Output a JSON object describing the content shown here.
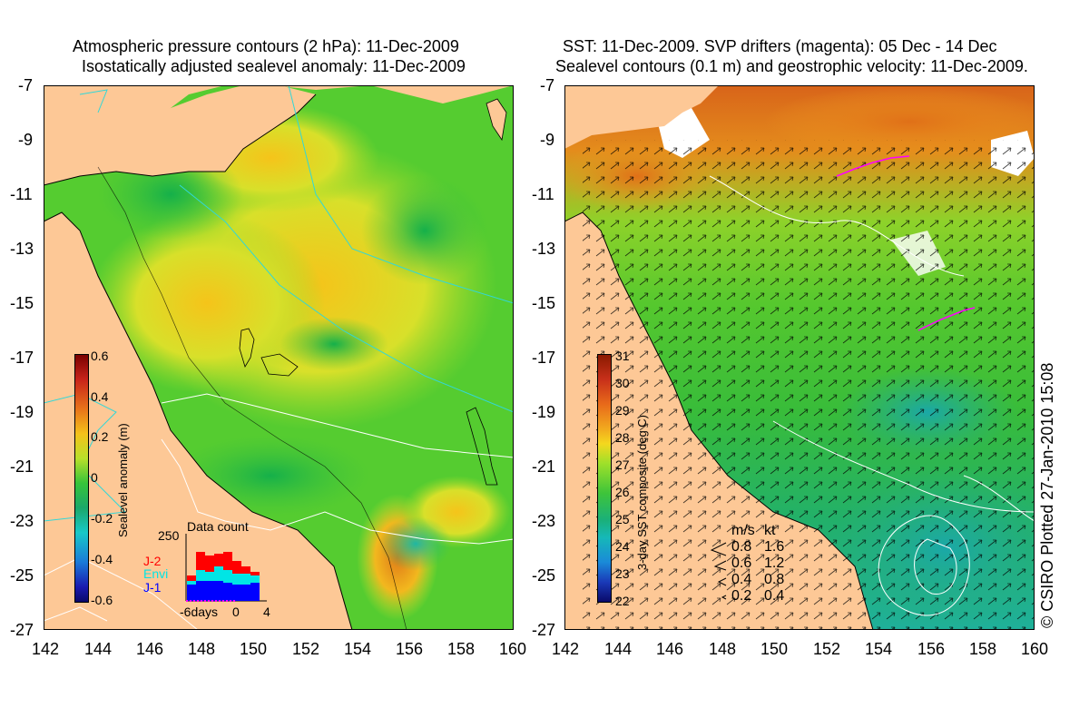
{
  "left_panel": {
    "title_line1": "Atmospheric pressure contours (2 hPa): 11-Dec-2009",
    "title_line2": "  Isostatically adjusted sealevel anomaly: 11-Dec-2009",
    "y_ticks": [
      "-7",
      "-9",
      "-11",
      "-13",
      "-15",
      "-17",
      "-19",
      "-21",
      "-23",
      "-25",
      "-27"
    ],
    "x_ticks": [
      "142",
      "144",
      "146",
      "148",
      "150",
      "152",
      "154",
      "156",
      "158",
      "160"
    ],
    "colorbar": {
      "title": "Sealevel anomaly (m)",
      "ticks": [
        "0.6",
        "0.4",
        "0.2",
        "0",
        "-0.2",
        "-0.4",
        "-0.6"
      ],
      "range": [
        -0.6,
        0.6
      ]
    },
    "data_count": {
      "title": "Data count",
      "max_label": "250",
      "x_labels": [
        "-6days",
        "0",
        "4"
      ],
      "series_labels": [
        "J-2",
        "Envi",
        "J-1"
      ],
      "series_colors": [
        "#ff0000",
        "#00e5e5",
        "#0000ff"
      ]
    }
  },
  "right_panel": {
    "title_line1": "SST: 11-Dec-2009. SVP drifters (magenta): 05 Dec - 14 Dec",
    "title_line2": " Sealevel contours (0.1 m) and geostrophic velocity: 11-Dec-2009.",
    "y_ticks": [
      "-7",
      "-9",
      "-11",
      "-13",
      "-15",
      "-17",
      "-19",
      "-21",
      "-23",
      "-25",
      "-27"
    ],
    "x_ticks": [
      "142",
      "144",
      "146",
      "148",
      "150",
      "152",
      "154",
      "156",
      "158",
      "160"
    ],
    "colorbar": {
      "title": "3-day SST composite (deg C)",
      "ticks": [
        "31",
        "30",
        "29",
        "28",
        "27",
        "26",
        "25",
        "24",
        "23",
        "22"
      ],
      "range": [
        22,
        31
      ]
    },
    "velocity_legend": {
      "header_ms": "m/s",
      "header_kt": "kt",
      "rows": [
        {
          "ms": "0.8",
          "kt": "1.6"
        },
        {
          "ms": "0.6",
          "kt": "1.2"
        },
        {
          "ms": "0.4",
          "kt": "0.8"
        },
        {
          "ms": "0.2",
          "kt": "0.4"
        }
      ]
    }
  },
  "footer": {
    "copyright": "© CSIRO Plotted 27-Jan-2010 15:08"
  },
  "colors": {
    "land": "#fdc896",
    "sla_green": "#4fcc2e",
    "sst_green": "#3fbe2f",
    "sst_orange": "#e06a1a",
    "contour_cyan": "#32d7d7",
    "drifter_magenta": "#ff00ff"
  }
}
